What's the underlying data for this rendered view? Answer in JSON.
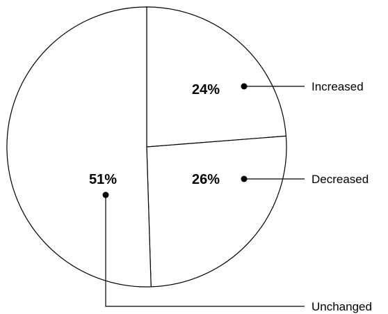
{
  "chart_data": {
    "type": "pie",
    "title": "",
    "slices": [
      {
        "label": "Increased",
        "value": 24,
        "value_label": "24%"
      },
      {
        "label": "Decreased",
        "value": 26,
        "value_label": "26%"
      },
      {
        "label": "Unchanged",
        "value": 51,
        "value_label": "51%"
      }
    ],
    "start_angle_deg": 0,
    "direction": "clockwise",
    "fill_color": "#ffffff",
    "stroke_color": "#000000",
    "legend": "none"
  }
}
